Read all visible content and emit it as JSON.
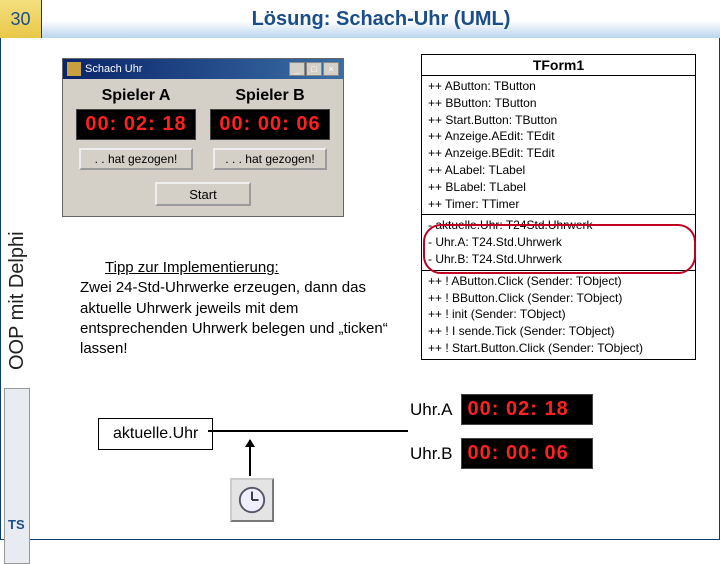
{
  "page_number": "30",
  "title": "Lösung: Schach-Uhr (UML)",
  "side_label": "OOP mit Delphi",
  "footer": "TS",
  "window": {
    "title": "Schach Uhr",
    "player_a_label": "Spieler A",
    "player_b_label": "Spieler B",
    "time_a": "00: 02: 18",
    "time_b": "00: 00: 06",
    "move_a": ". . hat gezogen!",
    "move_b": ". . . hat gezogen!",
    "start": "Start"
  },
  "tip": {
    "heading": "Tipp zur Implementierung:",
    "body": "Zwei 24-Std-Uhrwerke erzeugen, dann das aktuelle Uhrwerk jeweils mit dem entsprechenden Uhrwerk belegen und „ticken“ lassen!"
  },
  "uml": {
    "class_name": "TForm1",
    "attrs1": [
      "++ AButton: TButton",
      "++ BButton: TButton",
      "++ Start.Button: TButton",
      "++ Anzeige.AEdit: TEdit",
      "++ Anzeige.BEdit: TEdit",
      "++ ALabel: TLabel",
      "++ BLabel: TLabel",
      "++ Timer: TTimer"
    ],
    "attrs_circled": [
      "- aktuelle.Uhr: T24Std.Uhrwerk",
      "- Uhr.A: T24.Std.Uhrwerk",
      "- Uhr.B: T24.Std.Uhrwerk"
    ],
    "methods": [
      "++ ! AButton.Click (Sender: TObject)",
      "++ ! BButton.Click (Sender: TObject)",
      "++ ! init (Sender: TObject)",
      "++ ! I sende.Tick (Sender: TObject)",
      "++ ! Start.Button.Click (Sender: TObject)"
    ]
  },
  "diagram": {
    "akt": "aktuelle.Uhr",
    "uhr_a_label": "Uhr.A",
    "uhr_a_time": "00: 02: 18",
    "uhr_b_label": "Uhr.B",
    "uhr_b_time": "00: 00: 06"
  }
}
